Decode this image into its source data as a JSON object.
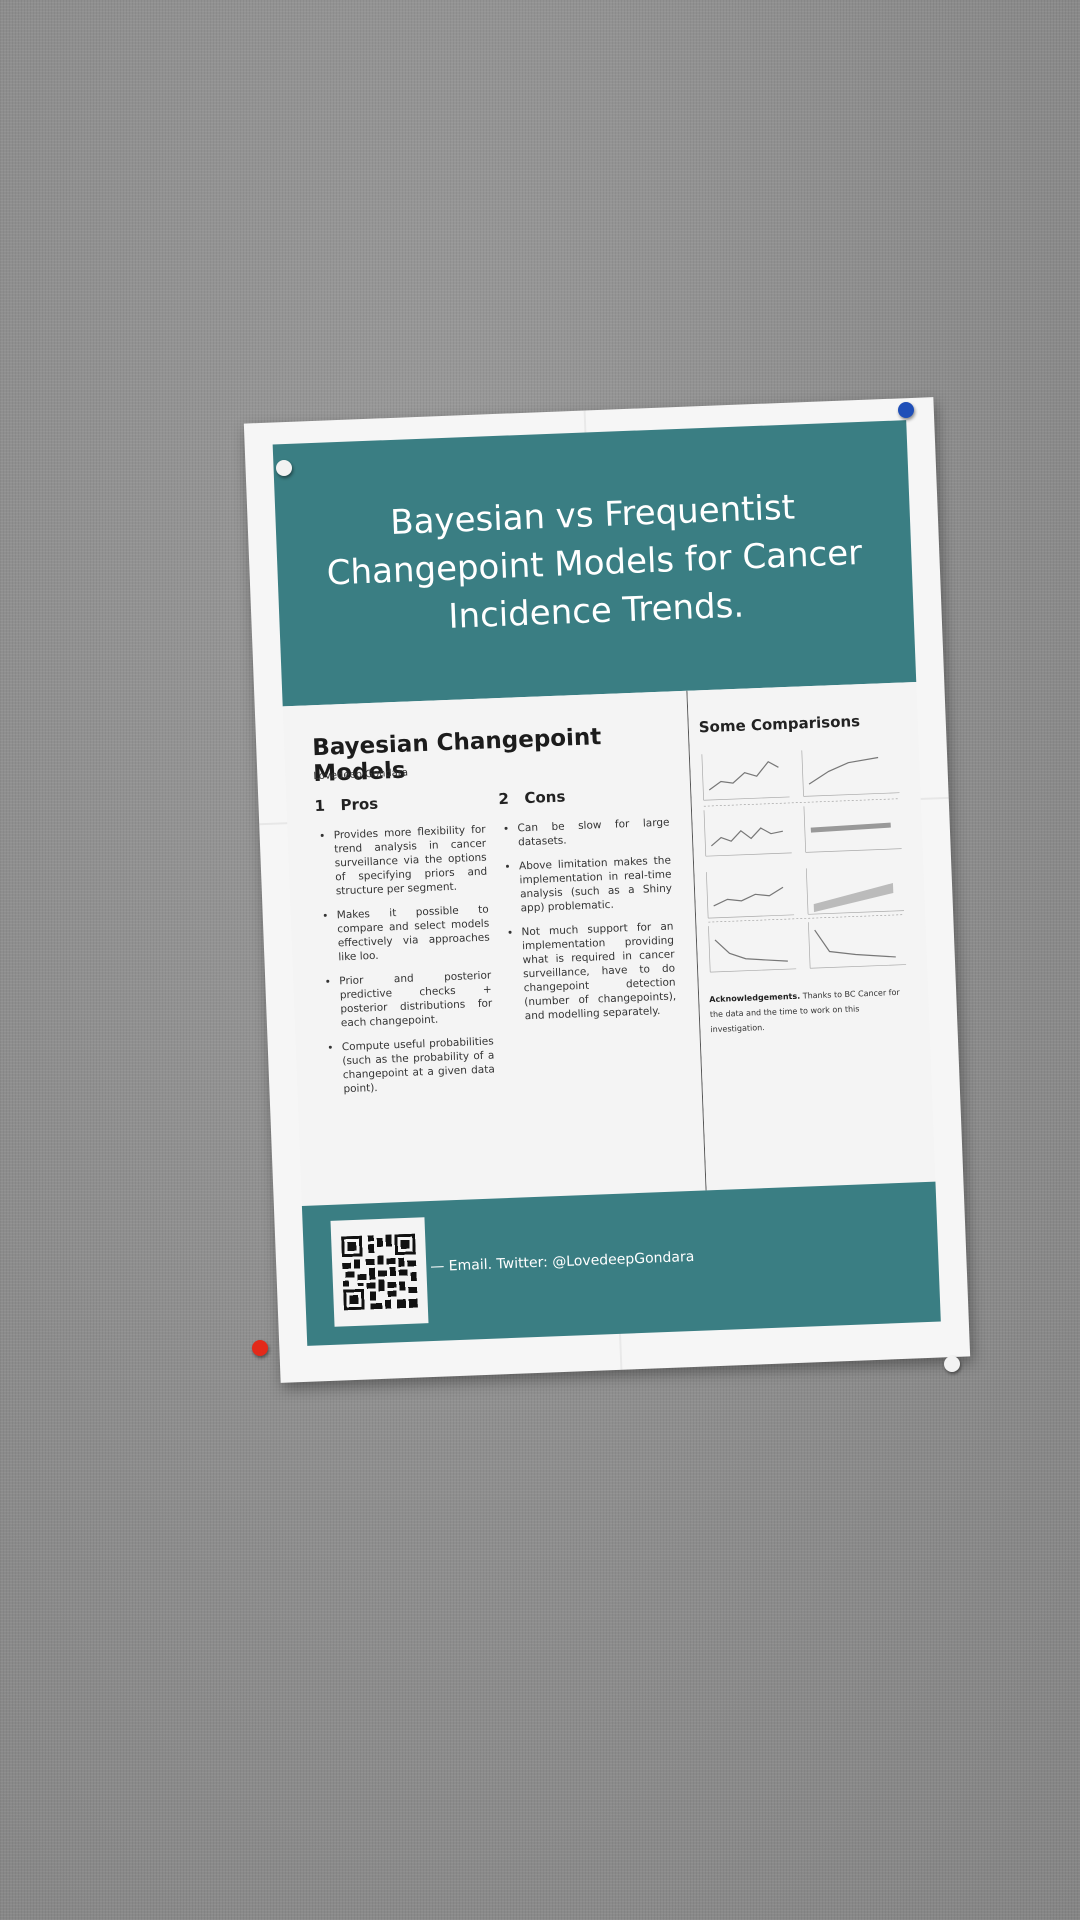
{
  "colors": {
    "board": "#8e8e8e",
    "paper": "#f6f6f6",
    "teal": "#3a7e83",
    "pin_blue": "#1f4fb8",
    "pin_red": "#e32a1a",
    "pin_white": "#f2f2f2"
  },
  "poster": {
    "title": "Bayesian vs Frequentist Changepoint Models for Cancer Incidence Trends.",
    "main_heading": "Bayesian Changepoint Models",
    "author": "Lovedeep Gondara",
    "pros": {
      "number": "1",
      "heading": "Pros",
      "items": [
        "Provides more flexibility for trend analysis in cancer surveillance via the options of specifying priors and structure per segment.",
        "Makes it possible to compare and select models effectively via approaches like loo.",
        "Prior and posterior predictive checks + posterior distributions for each changepoint.",
        "Compute useful probabilities (such as the probability of a changepoint at a given data point)."
      ]
    },
    "cons": {
      "number": "2",
      "heading": "Cons",
      "items": [
        "Can be slow for large datasets.",
        "Above limitation makes the implementation in real-time analysis (such as a Shiny app) problematic.",
        "Not much support for an implementation providing what is required in cancer surveillance, have to do changepoint detection (number of changepoints), and modelling separately."
      ]
    },
    "side": {
      "heading": "Some Comparisons",
      "ack_label": "Acknowledgements.",
      "ack_text": "Thanks to BC Cancer for the data and the time to work on this investigation."
    },
    "footer": {
      "contact": "— Email. Twitter: @LovedeepGondara",
      "qr_icon": "qr-code-icon"
    }
  }
}
